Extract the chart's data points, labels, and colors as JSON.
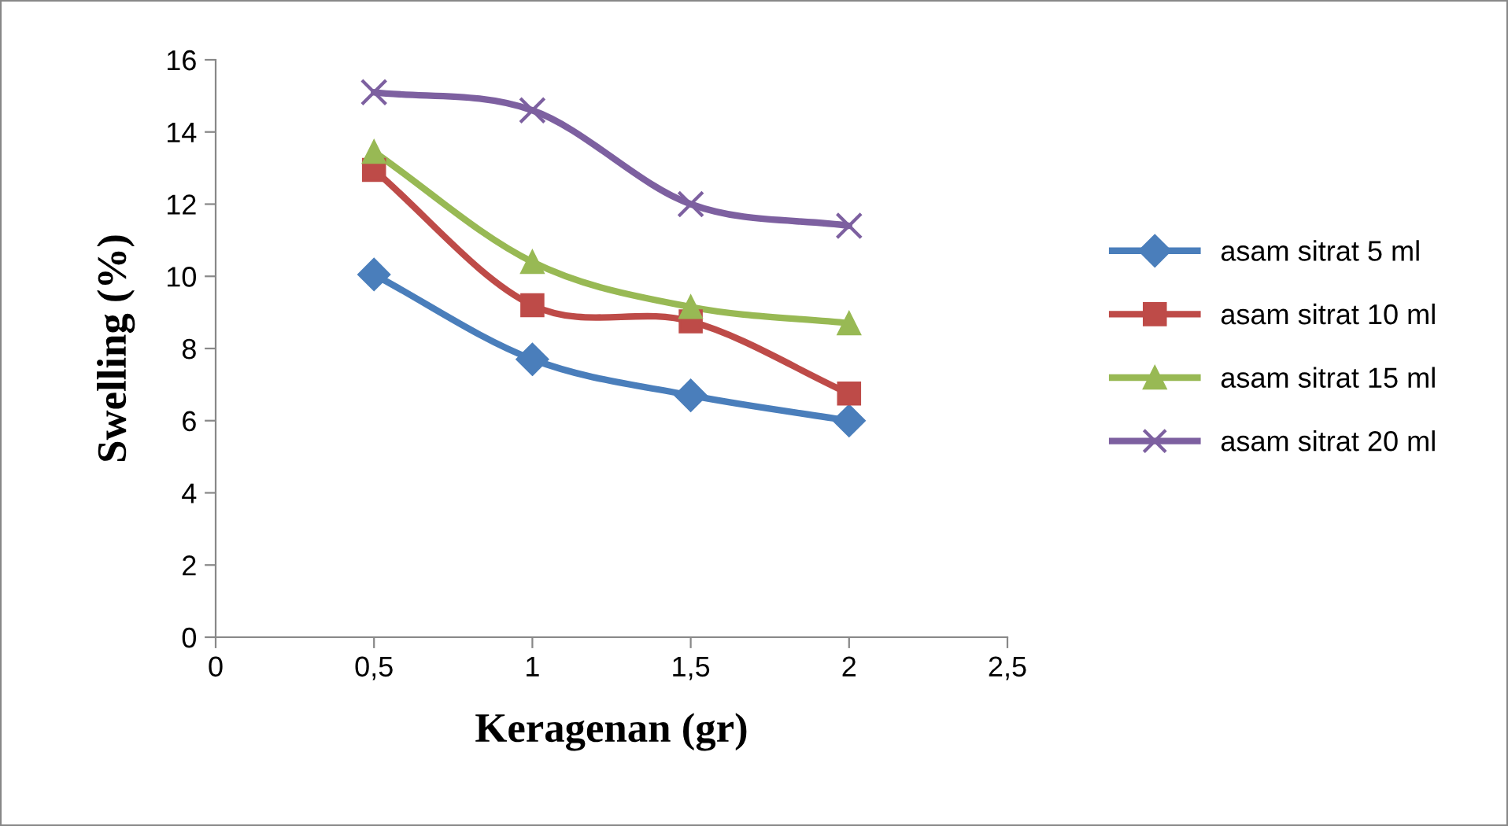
{
  "chart_data": {
    "type": "line",
    "xlabel": "Keragenan (gr)",
    "ylabel": "Swelling (%)",
    "x": [
      0.5,
      1,
      1.5,
      2
    ],
    "xlim": [
      0,
      2.5
    ],
    "xticks": [
      0,
      {
        "value": 0.5,
        "label": "0,5"
      },
      1,
      {
        "value": 1.5,
        "label": "1,5"
      },
      2,
      {
        "value": 2.5,
        "label": "2,5"
      }
    ],
    "ylim": [
      0,
      16
    ],
    "yticks": [
      0,
      2,
      4,
      6,
      8,
      10,
      12,
      14,
      16
    ],
    "grid": false,
    "legend": "right",
    "line_style": "solid",
    "series": [
      {
        "name": "asam sitrat 5 ml",
        "color": "#4a7ebb",
        "marker": "diamond",
        "values": [
          10.05,
          7.7,
          6.7,
          6.0
        ]
      },
      {
        "name": "asam sitrat 10 ml",
        "color": "#be4b48",
        "marker": "square",
        "values": [
          12.95,
          9.2,
          8.75,
          6.75
        ]
      },
      {
        "name": "asam sitrat 15 ml",
        "color": "#98b954",
        "marker": "triangle",
        "values": [
          13.45,
          10.4,
          9.15,
          8.7
        ]
      },
      {
        "name": "asam sitrat 20 ml",
        "color": "#7d60a0",
        "marker": "cross",
        "values": [
          15.1,
          14.6,
          12.0,
          11.4
        ]
      }
    ]
  }
}
